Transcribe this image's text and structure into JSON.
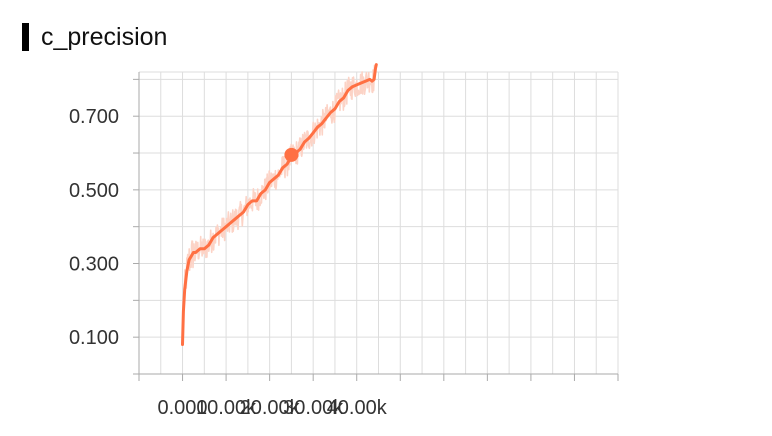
{
  "header": {
    "title": "c_precision"
  },
  "chart_data": {
    "type": "line",
    "title": "c_precision",
    "xlabel": "",
    "ylabel": "",
    "xlim": [
      -10000,
      100000
    ],
    "ylim": [
      0.0,
      0.82
    ],
    "x_ticks": [
      0,
      10000,
      20000,
      30000,
      40000
    ],
    "x_tick_labels": [
      "0.000",
      "10.00k",
      "20.00k",
      "30.00k",
      "40.00k"
    ],
    "y_ticks": [
      0.1,
      0.3,
      0.5,
      0.7
    ],
    "y_tick_labels": [
      "0.100",
      "0.300",
      "0.500",
      "0.700"
    ],
    "grid": true,
    "colors": {
      "smoothed": "#ff7043",
      "raw": "#fcd3c6",
      "grid": "#dddddd",
      "axis": "#aaaaaa"
    },
    "highlight_point": {
      "x": 25000,
      "y": 0.595
    },
    "series": [
      {
        "x": [
          0,
          200,
          500,
          1000,
          1500,
          2000,
          2500,
          3000,
          4000,
          5000,
          6000,
          7000,
          8000,
          9000,
          10000,
          11000,
          12000,
          13000,
          14000,
          15000,
          16000,
          17000,
          18000,
          19000,
          20000,
          21000,
          22000,
          23000,
          24000,
          25000,
          26000,
          27000,
          28000,
          29000,
          30000,
          31000,
          32000,
          33000,
          34000,
          35000,
          36000,
          37000,
          38000,
          39000,
          40000,
          41000,
          42000,
          43000,
          43500,
          44000,
          44300,
          44500
        ],
        "y": [
          0.08,
          0.17,
          0.23,
          0.28,
          0.31,
          0.32,
          0.33,
          0.33,
          0.34,
          0.34,
          0.35,
          0.37,
          0.38,
          0.39,
          0.4,
          0.41,
          0.42,
          0.43,
          0.44,
          0.46,
          0.47,
          0.47,
          0.49,
          0.5,
          0.52,
          0.53,
          0.54,
          0.56,
          0.57,
          0.59,
          0.6,
          0.61,
          0.63,
          0.64,
          0.655,
          0.67,
          0.68,
          0.695,
          0.71,
          0.72,
          0.74,
          0.75,
          0.77,
          0.78,
          0.785,
          0.79,
          0.795,
          0.8,
          0.795,
          0.8,
          0.83,
          0.84
        ]
      }
    ]
  }
}
